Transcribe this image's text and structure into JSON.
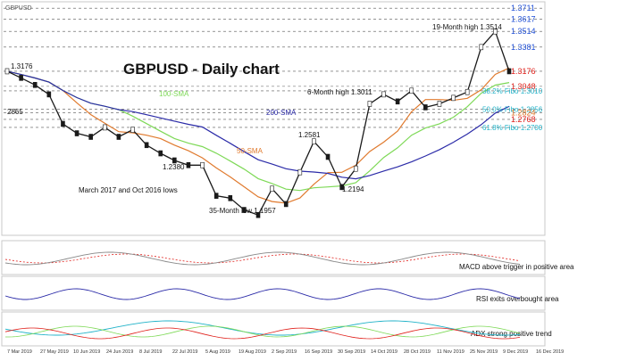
{
  "header": {
    "symbol": "GBPUSD"
  },
  "chart_data": {
    "type": "line",
    "title": "GBPUSD - Daily chart",
    "x_labels": [
      "7 Mar 2019",
      "27 May 2019",
      "10 Jun 2019",
      "24 Jun 2019",
      "8 Jul 2019",
      "22 Jul 2019",
      "5 Aug 2019",
      "19 Aug 2019",
      "2 Sep 2019",
      "16 Sep 2019",
      "30 Sep 2019",
      "14 Oct 2019",
      "28 Oct 2019",
      "11 Nov 2019",
      "25 Nov 2019",
      "9 Dec 2019",
      "16 Dec 2019"
    ],
    "right_axis": [
      {
        "label": "1.3711",
        "color": "#1f4fd6",
        "value": 1.3711
      },
      {
        "label": "1.3617",
        "color": "#1f4fd6",
        "value": 1.3617
      },
      {
        "label": "1.3514",
        "color": "#1f4fd6",
        "value": 1.3514
      },
      {
        "label": "1.3381",
        "color": "#1f4fd6",
        "value": 1.3381
      },
      {
        "label": "1.3176",
        "color": "#e0201b",
        "value": 1.3176
      },
      {
        "label": "1.3048",
        "color": "#e0201b",
        "value": 1.3048
      },
      {
        "label": "38.2% Fibo 1.3010",
        "color": "#20b2c8",
        "value": 1.301
      },
      {
        "label": "50.0% Fibo 1.2856",
        "color": "#20b2c8",
        "value": 1.2856
      },
      {
        "label": "1.2824",
        "color": "#e07a2e",
        "value": 1.2824
      },
      {
        "label": "1.2768",
        "color": "#e0201b",
        "value": 1.2768
      },
      {
        "label": "61.8% Fibo 1.2700",
        "color": "#20b2c8",
        "value": 1.27
      }
    ],
    "annotations": [
      {
        "text": "19-Month high 1.3514",
        "value": 1.3514
      },
      {
        "text": "1.3176",
        "value": 1.3176
      },
      {
        "text": "6-Month high 1.3011",
        "value": 1.3011
      },
      {
        "text": "100-SMA",
        "color": "#7ed957"
      },
      {
        "text": "200-SMA",
        "color": "#2b2ba8"
      },
      {
        "text": "50-SMA",
        "color": "#e07a2e"
      },
      {
        "text": "1.2581",
        "value": 1.2581
      },
      {
        "text": "1.2380",
        "value": 1.238
      },
      {
        "text": "1.2194",
        "value": 1.2194
      },
      {
        "text": "March 2017 and Oct 2016 lows"
      },
      {
        "text": "35-Month low 1.1957",
        "value": 1.1957
      },
      {
        "text": "2865"
      }
    ],
    "price_series": [
      {
        "date": "7 Mar 2019",
        "value": 1.3176
      },
      {
        "value": 1.312
      },
      {
        "value": 1.306
      },
      {
        "value": 1.298
      },
      {
        "date": "27 May 2019",
        "value": 1.273
      },
      {
        "value": 1.265
      },
      {
        "value": 1.262
      },
      {
        "date": "10 Jun 2019",
        "value": 1.27
      },
      {
        "value": 1.262
      },
      {
        "date": "24 Jun 2019",
        "value": 1.268
      },
      {
        "value": 1.255
      },
      {
        "date": "8 Jul 2019",
        "value": 1.248
      },
      {
        "value": 1.242
      },
      {
        "value": 1.238
      },
      {
        "date": "22 Jul 2019",
        "value": 1.238
      },
      {
        "value": 1.212
      },
      {
        "date": "5 Aug 2019",
        "value": 1.21
      },
      {
        "value": 1.2
      },
      {
        "date": "19 Aug 2019",
        "value": 1.1957
      },
      {
        "value": 1.218
      },
      {
        "date": "2 Sep 2019",
        "value": 1.205
      },
      {
        "value": 1.232
      },
      {
        "date": "16 Sep 2019",
        "value": 1.2581
      },
      {
        "value": 1.245
      },
      {
        "date": "30 Sep 2019",
        "value": 1.2194
      },
      {
        "value": 1.235
      },
      {
        "date": "14 Oct 2019",
        "value": 1.29
      },
      {
        "value": 1.298
      },
      {
        "date": "28 Oct 2019",
        "value": 1.292
      },
      {
        "value": 1.3011
      },
      {
        "date": "11 Nov 2019",
        "value": 1.287
      },
      {
        "value": 1.29
      },
      {
        "date": "25 Nov 2019",
        "value": 1.295
      },
      {
        "value": 1.3
      },
      {
        "date": "9 Dec 2019",
        "value": 1.3381
      },
      {
        "value": 1.3514
      },
      {
        "date": "16 Dec 2019",
        "value": 1.3176
      }
    ],
    "ylim": [
      1.18,
      1.375
    ],
    "grid": true,
    "panels": [
      {
        "name": "MACD",
        "caption": "MACD above trigger in positive area"
      },
      {
        "name": "RSI",
        "caption": "RSI exits overbought area"
      },
      {
        "name": "ADX",
        "caption": "ADX strong positive trend"
      }
    ]
  }
}
